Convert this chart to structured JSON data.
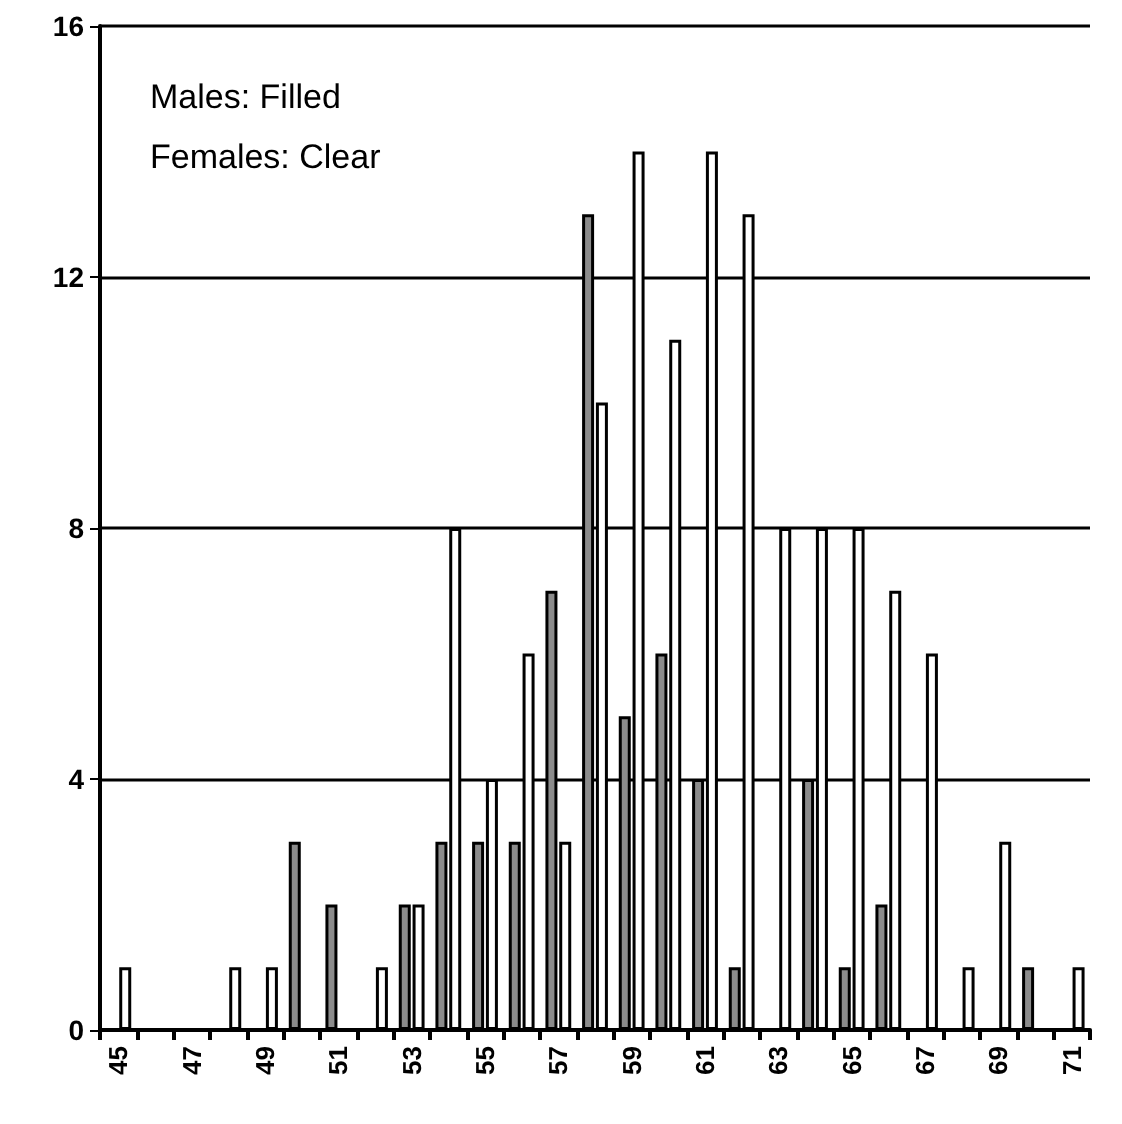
{
  "chart_data": {
    "type": "bar",
    "categories": [
      "45",
      null,
      "47",
      null,
      "49",
      null,
      "51",
      null,
      "53",
      null,
      "55",
      null,
      "57",
      null,
      "59",
      null,
      "61",
      null,
      "63",
      null,
      "65",
      null,
      "67",
      null,
      "69",
      null,
      "71"
    ],
    "series": [
      {
        "color": "#8c8c8c",
        "values": [
          0,
          0,
          0,
          0,
          0,
          3,
          2,
          0,
          2,
          3,
          3,
          3,
          7,
          13,
          5,
          6,
          4,
          1,
          0,
          4,
          1,
          2,
          0,
          0,
          0,
          1,
          0
        ]
      },
      {
        "color": "#ffffff",
        "values": [
          1,
          0,
          0,
          1,
          1,
          0,
          0,
          1,
          2,
          8,
          4,
          6,
          3,
          10,
          14,
          11,
          14,
          13,
          8,
          8,
          8,
          7,
          6,
          1,
          3,
          0,
          1
        ]
      }
    ],
    "ylim": [
      0,
      16
    ],
    "yticks": [
      0,
      4,
      8,
      12,
      16
    ],
    "grid": "y",
    "annotations": [
      "Males: Filled",
      "Females: Clear"
    ]
  }
}
